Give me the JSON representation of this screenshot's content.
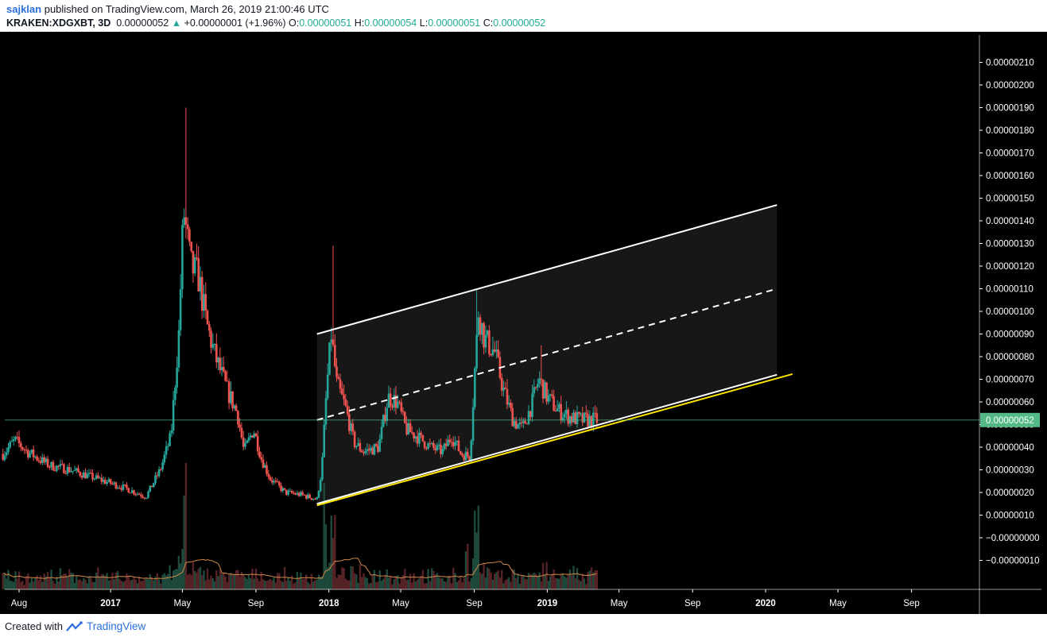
{
  "header": {
    "author": "sajklan",
    "published_text": "published on TradingView.com, March 26, 2019 21:00:46 UTC"
  },
  "symbol_line": {
    "symbol": "KRAKEN:XDGXBT, 3D",
    "last": "0.00000052",
    "change_arrow": "▲",
    "change": "+0.00000001 (+1.96%)",
    "open_label": "O:",
    "open": "0.00000051",
    "high_label": "H:",
    "high": "0.00000054",
    "low_label": "L:",
    "low": "0.00000051",
    "close_label": "C:",
    "close": "0.00000052"
  },
  "footer": {
    "created_with": "Created with",
    "brand": "TradingView"
  },
  "colors": {
    "background": "#000000",
    "up": "#26a69a",
    "down": "#ef5350",
    "channel": "#ffffff",
    "support": "#ffe400",
    "price_tag": "#53b987",
    "volume_ma": "#d2884a"
  },
  "chart_data": {
    "type": "candlestick",
    "ylim": [
      -1.4e-07,
      2.13e-06
    ],
    "y_ticks": [
      "0.00000210",
      "0.00000200",
      "0.00000190",
      "0.00000180",
      "0.00000170",
      "0.00000160",
      "0.00000150",
      "0.00000140",
      "0.00000130",
      "0.00000120",
      "0.00000110",
      "0.00000100",
      "0.00000090",
      "0.00000080",
      "0.00000070",
      "0.00000060",
      "0.00000050",
      "0.00000040",
      "0.00000030",
      "0.00000020",
      "0.00000010",
      "−0.00000000",
      "−0.00000010"
    ],
    "y_tick_values": [
      2.1,
      2.0,
      1.9,
      1.8,
      1.7,
      1.6,
      1.5,
      1.4,
      1.3,
      1.2,
      1.1,
      1.0,
      0.9,
      0.8,
      0.7,
      0.6,
      0.5,
      0.4,
      0.3,
      0.2,
      0.1,
      0.0,
      -0.1
    ],
    "x_ticks": [
      "Aug",
      "2017",
      "May",
      "Sep",
      "2018",
      "May",
      "Sep",
      "2019",
      "May",
      "Sep",
      "2020",
      "May",
      "Sep"
    ],
    "x_tick_dates": [
      "2016-08-01",
      "2017-01-01",
      "2017-05-01",
      "2017-09-01",
      "2018-01-01",
      "2018-05-01",
      "2018-09-01",
      "2019-01-01",
      "2019-05-01",
      "2019-09-01",
      "2020-01-01",
      "2020-05-01",
      "2020-09-01"
    ],
    "bold_ticks": [
      "2017",
      "2018",
      "2019",
      "2020"
    ],
    "last_price_label": "0.00000052",
    "last_price": 0.52,
    "price_unit": "1e-6 BTC",
    "close_path": [
      [
        "2016-07-05",
        0.37
      ],
      [
        "2016-07-25",
        0.43
      ],
      [
        "2016-08-15",
        0.38
      ],
      [
        "2016-09-20",
        0.32
      ],
      [
        "2016-10-25",
        0.3
      ],
      [
        "2016-12-10",
        0.26
      ],
      [
        "2017-01-25",
        0.22
      ],
      [
        "2017-03-01",
        0.18
      ],
      [
        "2017-03-25",
        0.3
      ],
      [
        "2017-04-12",
        0.45
      ],
      [
        "2017-04-25",
        0.9
      ],
      [
        "2017-05-03",
        1.45
      ],
      [
        "2017-05-15",
        1.2
      ],
      [
        "2017-05-28",
        1.15
      ],
      [
        "2017-06-10",
        0.95
      ],
      [
        "2017-06-25",
        0.8
      ],
      [
        "2017-07-15",
        0.65
      ],
      [
        "2017-08-01",
        0.55
      ],
      [
        "2017-08-12",
        0.38
      ],
      [
        "2017-08-28",
        0.48
      ],
      [
        "2017-09-10",
        0.35
      ],
      [
        "2017-09-25",
        0.26
      ],
      [
        "2017-10-20",
        0.2
      ],
      [
        "2017-11-15",
        0.19
      ],
      [
        "2017-12-12",
        0.17
      ],
      [
        "2017-12-20",
        0.3
      ],
      [
        "2017-12-28",
        0.65
      ],
      [
        "2018-01-05",
        0.9
      ],
      [
        "2018-01-14",
        0.68
      ],
      [
        "2018-01-28",
        0.58
      ],
      [
        "2018-02-12",
        0.42
      ],
      [
        "2018-02-28",
        0.38
      ],
      [
        "2018-03-25",
        0.4
      ],
      [
        "2018-04-10",
        0.62
      ],
      [
        "2018-04-25",
        0.6
      ],
      [
        "2018-05-10",
        0.48
      ],
      [
        "2018-06-01",
        0.44
      ],
      [
        "2018-06-20",
        0.4
      ],
      [
        "2018-07-10",
        0.38
      ],
      [
        "2018-07-25",
        0.45
      ],
      [
        "2018-08-10",
        0.37
      ],
      [
        "2018-08-25",
        0.36
      ],
      [
        "2018-09-01",
        0.7
      ],
      [
        "2018-09-08",
        1.0
      ],
      [
        "2018-09-18",
        0.88
      ],
      [
        "2018-10-05",
        0.82
      ],
      [
        "2018-10-20",
        0.65
      ],
      [
        "2018-11-05",
        0.52
      ],
      [
        "2018-11-20",
        0.48
      ],
      [
        "2018-12-05",
        0.58
      ],
      [
        "2018-12-18",
        0.7
      ],
      [
        "2019-01-01",
        0.62
      ],
      [
        "2019-01-20",
        0.56
      ],
      [
        "2019-02-10",
        0.53
      ],
      [
        "2019-03-01",
        0.52
      ],
      [
        "2019-03-26",
        0.52
      ]
    ],
    "notable_highs": [
      [
        "2017-05-07",
        1.9
      ],
      [
        "2018-01-07",
        1.29
      ],
      [
        "2018-09-05",
        1.1
      ],
      [
        "2018-12-22",
        0.85
      ]
    ],
    "channel": {
      "upper": [
        [
          "2017-12-12",
          0.9
        ],
        [
          "2020-01-20",
          1.47
        ]
      ],
      "middle": [
        [
          "2017-12-12",
          0.52
        ],
        [
          "2020-01-20",
          1.1
        ]
      ],
      "lower": [
        [
          "2017-12-12",
          0.15
        ],
        [
          "2020-01-20",
          0.72
        ]
      ]
    },
    "support_line": [
      [
        "2017-12-12",
        0.15
      ],
      [
        "2020-02-15",
        0.73
      ]
    ],
    "volume_spikes": [
      [
        "2017-05-05",
        1.0
      ],
      [
        "2017-12-25",
        0.85
      ],
      [
        "2018-01-08",
        0.6
      ],
      [
        "2018-09-05",
        0.72
      ],
      [
        "2018-08-20",
        0.4
      ]
    ]
  }
}
